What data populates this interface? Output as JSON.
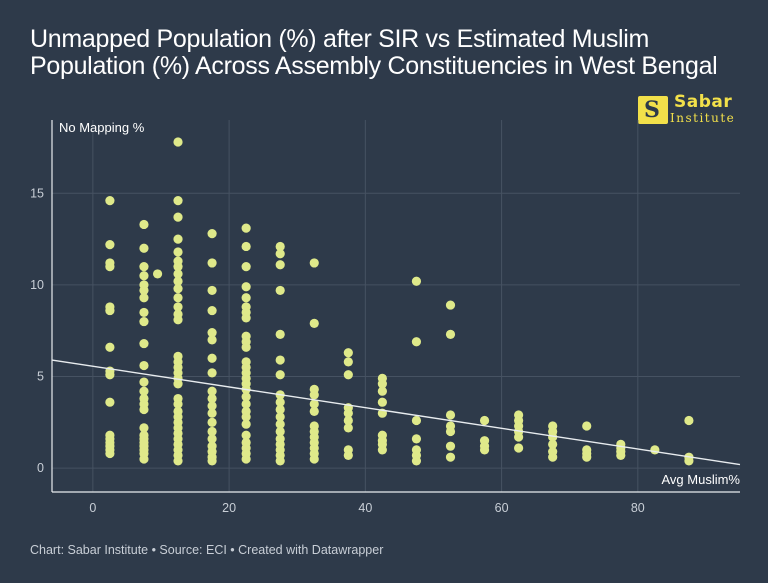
{
  "title": "Unmapped Population (%) after SIR vs Estimated Muslim Population (%) Across Assembly Constituencies in West Bengal",
  "logo": {
    "name": "Sabar",
    "sub": "Institute"
  },
  "footer": "Chart: Sabar Institute • Source: ECI • Created with Datawrapper",
  "colors": {
    "background": "#2e3a4a",
    "points": "#dfe98a",
    "trend": "#e8ecef",
    "grid": "#465262",
    "axis": "#e8ecef"
  },
  "chart_data": {
    "type": "scatter",
    "title": "Unmapped Population (%) after SIR vs Estimated Muslim Population (%) Across Assembly Constituencies in West Bengal",
    "xlabel": "Avg Muslim%",
    "ylabel": "No Mapping %",
    "xlim": [
      -6,
      95
    ],
    "ylim": [
      -1.3,
      19
    ],
    "xticks": [
      0,
      20,
      40,
      60,
      80
    ],
    "yticks": [
      0,
      5,
      10,
      15
    ],
    "grid": true,
    "trend_line": {
      "x": [
        -6,
        95
      ],
      "y": [
        5.9,
        0.2
      ]
    },
    "points": [
      [
        2.5,
        14.6
      ],
      [
        2.5,
        12.2
      ],
      [
        2.5,
        11.2
      ],
      [
        2.5,
        11.0
      ],
      [
        2.5,
        8.8
      ],
      [
        2.5,
        8.6
      ],
      [
        2.5,
        6.6
      ],
      [
        2.5,
        5.3
      ],
      [
        2.5,
        5.1
      ],
      [
        2.5,
        3.6
      ],
      [
        2.5,
        1.8
      ],
      [
        2.5,
        1.6
      ],
      [
        2.5,
        1.4
      ],
      [
        2.5,
        1.2
      ],
      [
        2.5,
        1.0
      ],
      [
        2.5,
        0.8
      ],
      [
        7.5,
        13.3
      ],
      [
        7.5,
        12.0
      ],
      [
        7.5,
        11.0
      ],
      [
        7.5,
        10.5
      ],
      [
        7.5,
        10.0
      ],
      [
        7.5,
        9.7
      ],
      [
        7.5,
        9.3
      ],
      [
        7.5,
        8.5
      ],
      [
        7.5,
        8.0
      ],
      [
        7.5,
        6.8
      ],
      [
        7.5,
        5.6
      ],
      [
        7.5,
        4.7
      ],
      [
        7.5,
        4.2
      ],
      [
        7.5,
        3.8
      ],
      [
        7.5,
        3.5
      ],
      [
        7.5,
        3.2
      ],
      [
        7.5,
        2.2
      ],
      [
        7.5,
        1.8
      ],
      [
        7.5,
        1.6
      ],
      [
        7.5,
        1.4
      ],
      [
        7.5,
        1.2
      ],
      [
        7.5,
        1.0
      ],
      [
        7.5,
        0.8
      ],
      [
        7.5,
        0.5
      ],
      [
        9.5,
        10.6
      ],
      [
        12.5,
        17.8
      ],
      [
        12.5,
        14.6
      ],
      [
        12.5,
        13.7
      ],
      [
        12.5,
        12.5
      ],
      [
        12.5,
        11.8
      ],
      [
        12.5,
        11.3
      ],
      [
        12.5,
        11.0
      ],
      [
        12.5,
        10.6
      ],
      [
        12.5,
        10.2
      ],
      [
        12.5,
        9.8
      ],
      [
        12.5,
        9.3
      ],
      [
        12.5,
        8.8
      ],
      [
        12.5,
        8.4
      ],
      [
        12.5,
        8.1
      ],
      [
        12.5,
        6.1
      ],
      [
        12.5,
        5.8
      ],
      [
        12.5,
        5.5
      ],
      [
        12.5,
        5.2
      ],
      [
        12.5,
        4.9
      ],
      [
        12.5,
        4.6
      ],
      [
        12.5,
        3.8
      ],
      [
        12.5,
        3.5
      ],
      [
        12.5,
        3.1
      ],
      [
        12.5,
        2.8
      ],
      [
        12.5,
        2.5
      ],
      [
        12.5,
        2.2
      ],
      [
        12.5,
        1.9
      ],
      [
        12.5,
        1.6
      ],
      [
        12.5,
        1.3
      ],
      [
        12.5,
        1.0
      ],
      [
        12.5,
        0.7
      ],
      [
        12.5,
        0.4
      ],
      [
        17.5,
        12.8
      ],
      [
        17.5,
        11.2
      ],
      [
        17.5,
        9.7
      ],
      [
        17.5,
        8.6
      ],
      [
        17.5,
        7.4
      ],
      [
        17.5,
        7.0
      ],
      [
        17.5,
        6.0
      ],
      [
        17.5,
        5.2
      ],
      [
        17.5,
        4.2
      ],
      [
        17.5,
        3.8
      ],
      [
        17.5,
        3.4
      ],
      [
        17.5,
        3.0
      ],
      [
        17.5,
        2.5
      ],
      [
        17.5,
        2.0
      ],
      [
        17.5,
        1.6
      ],
      [
        17.5,
        1.2
      ],
      [
        17.5,
        0.9
      ],
      [
        17.5,
        0.6
      ],
      [
        17.5,
        0.4
      ],
      [
        22.5,
        13.1
      ],
      [
        22.5,
        12.1
      ],
      [
        22.5,
        11.0
      ],
      [
        22.5,
        9.9
      ],
      [
        22.5,
        9.3
      ],
      [
        22.5,
        8.8
      ],
      [
        22.5,
        8.5
      ],
      [
        22.5,
        8.2
      ],
      [
        22.5,
        7.2
      ],
      [
        22.5,
        6.9
      ],
      [
        22.5,
        6.6
      ],
      [
        22.5,
        5.8
      ],
      [
        22.5,
        5.5
      ],
      [
        22.5,
        5.2
      ],
      [
        22.5,
        4.9
      ],
      [
        22.5,
        4.6
      ],
      [
        22.5,
        4.3
      ],
      [
        22.5,
        3.9
      ],
      [
        22.5,
        3.5
      ],
      [
        22.5,
        3.1
      ],
      [
        22.5,
        2.8
      ],
      [
        22.5,
        2.4
      ],
      [
        22.5,
        1.8
      ],
      [
        22.5,
        1.4
      ],
      [
        22.5,
        1.1
      ],
      [
        22.5,
        0.8
      ],
      [
        22.5,
        0.5
      ],
      [
        27.5,
        12.1
      ],
      [
        27.5,
        11.7
      ],
      [
        27.5,
        11.1
      ],
      [
        27.5,
        9.7
      ],
      [
        27.5,
        7.3
      ],
      [
        27.5,
        5.9
      ],
      [
        27.5,
        5.1
      ],
      [
        27.5,
        4.0
      ],
      [
        27.5,
        3.6
      ],
      [
        27.5,
        3.2
      ],
      [
        27.5,
        2.8
      ],
      [
        27.5,
        2.4
      ],
      [
        27.5,
        2.0
      ],
      [
        27.5,
        1.6
      ],
      [
        27.5,
        1.3
      ],
      [
        27.5,
        1.0
      ],
      [
        27.5,
        0.7
      ],
      [
        27.5,
        0.4
      ],
      [
        32.5,
        11.2
      ],
      [
        32.5,
        7.9
      ],
      [
        32.5,
        4.3
      ],
      [
        32.5,
        4.0
      ],
      [
        32.5,
        3.5
      ],
      [
        32.5,
        3.1
      ],
      [
        32.5,
        2.3
      ],
      [
        32.5,
        2.0
      ],
      [
        32.5,
        1.7
      ],
      [
        32.5,
        1.4
      ],
      [
        32.5,
        1.1
      ],
      [
        32.5,
        0.8
      ],
      [
        32.5,
        0.5
      ],
      [
        37.5,
        6.3
      ],
      [
        37.5,
        5.8
      ],
      [
        37.5,
        5.1
      ],
      [
        37.5,
        3.3
      ],
      [
        37.5,
        3.0
      ],
      [
        37.5,
        2.6
      ],
      [
        37.5,
        2.2
      ],
      [
        37.5,
        1.0
      ],
      [
        37.5,
        0.7
      ],
      [
        42.5,
        4.9
      ],
      [
        42.5,
        4.6
      ],
      [
        42.5,
        4.2
      ],
      [
        42.5,
        3.6
      ],
      [
        42.5,
        3.0
      ],
      [
        42.5,
        1.8
      ],
      [
        42.5,
        1.5
      ],
      [
        42.5,
        1.3
      ],
      [
        42.5,
        1.0
      ],
      [
        47.5,
        10.2
      ],
      [
        47.5,
        6.9
      ],
      [
        47.5,
        2.6
      ],
      [
        47.5,
        1.6
      ],
      [
        47.5,
        1.0
      ],
      [
        47.5,
        0.7
      ],
      [
        47.5,
        0.4
      ],
      [
        52.5,
        8.9
      ],
      [
        52.5,
        7.3
      ],
      [
        52.5,
        2.9
      ],
      [
        52.5,
        2.3
      ],
      [
        52.5,
        2.0
      ],
      [
        52.5,
        1.2
      ],
      [
        52.5,
        0.6
      ],
      [
        57.5,
        2.6
      ],
      [
        57.5,
        1.5
      ],
      [
        57.5,
        1.2
      ],
      [
        57.5,
        1.0
      ],
      [
        62.5,
        2.9
      ],
      [
        62.5,
        2.6
      ],
      [
        62.5,
        2.3
      ],
      [
        62.5,
        2.0
      ],
      [
        62.5,
        1.7
      ],
      [
        62.5,
        1.1
      ],
      [
        67.5,
        2.3
      ],
      [
        67.5,
        2.0
      ],
      [
        67.5,
        1.7
      ],
      [
        67.5,
        1.3
      ],
      [
        67.5,
        0.9
      ],
      [
        67.5,
        0.6
      ],
      [
        72.5,
        2.3
      ],
      [
        72.5,
        1.0
      ],
      [
        72.5,
        0.8
      ],
      [
        72.5,
        0.6
      ],
      [
        77.5,
        1.3
      ],
      [
        77.5,
        1.1
      ],
      [
        77.5,
        0.9
      ],
      [
        77.5,
        0.7
      ],
      [
        82.5,
        1.0
      ],
      [
        87.5,
        2.6
      ],
      [
        87.5,
        0.6
      ],
      [
        87.5,
        0.4
      ]
    ]
  }
}
